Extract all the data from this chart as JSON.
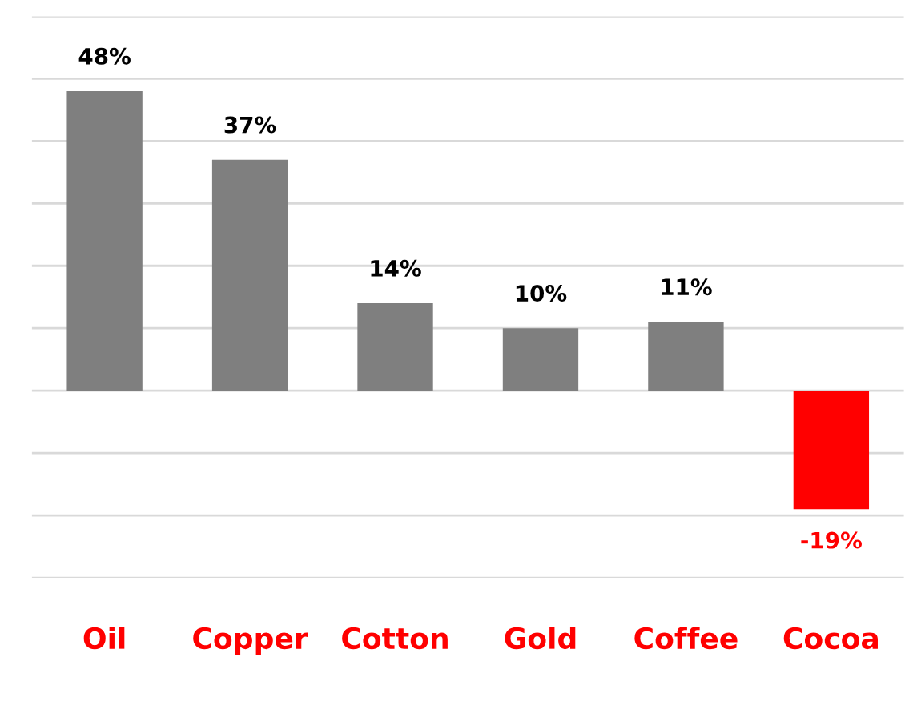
{
  "chart_data": {
    "type": "bar",
    "categories": [
      "Oil",
      "Copper",
      "Cotton",
      "Gold",
      "Coffee",
      "Cocoa"
    ],
    "values": [
      48,
      37,
      14,
      10,
      11,
      -19
    ],
    "colors": [
      "#7f7f7f",
      "#7f7f7f",
      "#7f7f7f",
      "#7f7f7f",
      "#7f7f7f",
      "#ff0000"
    ],
    "value_labels": [
      "48%",
      "37%",
      "14%",
      "10%",
      "11%",
      "-19%"
    ],
    "ylim": [
      -30,
      60
    ],
    "yticks": [
      {
        "value": -30,
        "label": null
      },
      {
        "value": -20,
        "label": null
      },
      {
        "value": -10,
        "label": null
      },
      {
        "value": 0,
        "label": null
      },
      {
        "value": 10,
        "label": null
      },
      {
        "value": 20,
        "label": null
      },
      {
        "value": 30,
        "label": null
      },
      {
        "value": 40,
        "label": null
      },
      {
        "value": 50,
        "label": null
      },
      {
        "value": 60,
        "label": null
      }
    ],
    "grid": "y",
    "legend": false
  }
}
